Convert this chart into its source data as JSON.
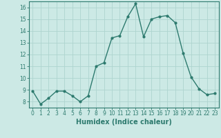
{
  "x": [
    0,
    1,
    2,
    3,
    4,
    5,
    6,
    7,
    8,
    9,
    10,
    11,
    12,
    13,
    14,
    15,
    16,
    17,
    18,
    19,
    20,
    21,
    22,
    23
  ],
  "y": [
    8.9,
    7.8,
    8.3,
    8.9,
    8.9,
    8.5,
    8.0,
    8.5,
    11.0,
    11.3,
    13.4,
    13.6,
    15.2,
    16.3,
    13.5,
    15.0,
    15.2,
    15.3,
    14.7,
    12.1,
    10.1,
    9.1,
    8.6,
    8.7
  ],
  "line_color": "#2d7a6e",
  "marker": "o",
  "markersize": 2.0,
  "linewidth": 1.0,
  "bg_color": "#cce9e5",
  "grid_color": "#aed4cf",
  "xlabel": "Humidex (Indice chaleur)",
  "xlabel_fontsize": 7.0,
  "ylabel_ticks": [
    8,
    9,
    10,
    11,
    12,
    13,
    14,
    15,
    16
  ],
  "xlim": [
    -0.5,
    23.5
  ],
  "ylim": [
    7.5,
    16.5
  ],
  "xtick_labels": [
    "0",
    "1",
    "2",
    "3",
    "4",
    "5",
    "6",
    "7",
    "8",
    "9",
    "10",
    "11",
    "12",
    "13",
    "14",
    "15",
    "16",
    "17",
    "18",
    "19",
    "20",
    "21",
    "22",
    "23"
  ],
  "tick_color": "#2d7a6e",
  "tick_fontsize": 5.5,
  "spine_color": "#2d7a6e"
}
